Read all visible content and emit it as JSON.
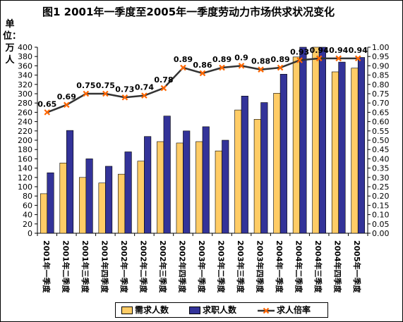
{
  "chart_data": {
    "type": "bar",
    "title": "图1  2001年一季度至2005年一季度劳动力市场供求状况变化",
    "unit_label": "单位：万人",
    "categories": [
      "2001年一季度",
      "2001年二季度",
      "2001年三季度",
      "2001年四季度",
      "2002年一季度",
      "2002年二季度",
      "2002年三季度",
      "2002年四季度",
      "2003年一季度",
      "2003年二季度",
      "2003年三季度",
      "2003年四季度",
      "2004年一季度",
      "2004年二季度",
      "2004年三季度",
      "2004年四季度",
      "2005年一季度"
    ],
    "series": [
      {
        "name": "需求人数",
        "type": "bar",
        "axis": "left",
        "color": "#FFCC66",
        "values": [
          85,
          151,
          120,
          108,
          127,
          155,
          197,
          194,
          197,
          177,
          265,
          245,
          301,
          379,
          402,
          347,
          355
        ]
      },
      {
        "name": "求职人数",
        "type": "bar",
        "axis": "left",
        "color": "#333399",
        "values": [
          130,
          221,
          160,
          144,
          175,
          208,
          252,
          220,
          229,
          200,
          295,
          281,
          342,
          408,
          409,
          368,
          378
        ]
      },
      {
        "name": "求人倍率",
        "type": "line",
        "axis": "right",
        "color": "#333333",
        "marker_color": "#FF6600",
        "values": [
          0.65,
          0.69,
          0.75,
          0.75,
          0.73,
          0.74,
          0.78,
          0.89,
          0.86,
          0.89,
          0.9,
          0.88,
          0.89,
          0.93,
          0.94,
          0.94,
          0.94
        ],
        "labels": [
          "0.65",
          "0.69",
          "0.75",
          "0.75",
          "0.73",
          "0.74",
          "0.78",
          "0.89",
          "0.86",
          "0.89",
          "0.9",
          "0.88",
          "0.89",
          "0.93",
          "0.94",
          "0.94",
          "0.94"
        ]
      }
    ],
    "y_left": {
      "min": 0,
      "max": 400,
      "step": 20
    },
    "y_right": {
      "min": 0,
      "max": 1.0,
      "step": 0.05
    },
    "grid": false,
    "legend_position": "bottom",
    "plot_background": "#ffffff"
  }
}
